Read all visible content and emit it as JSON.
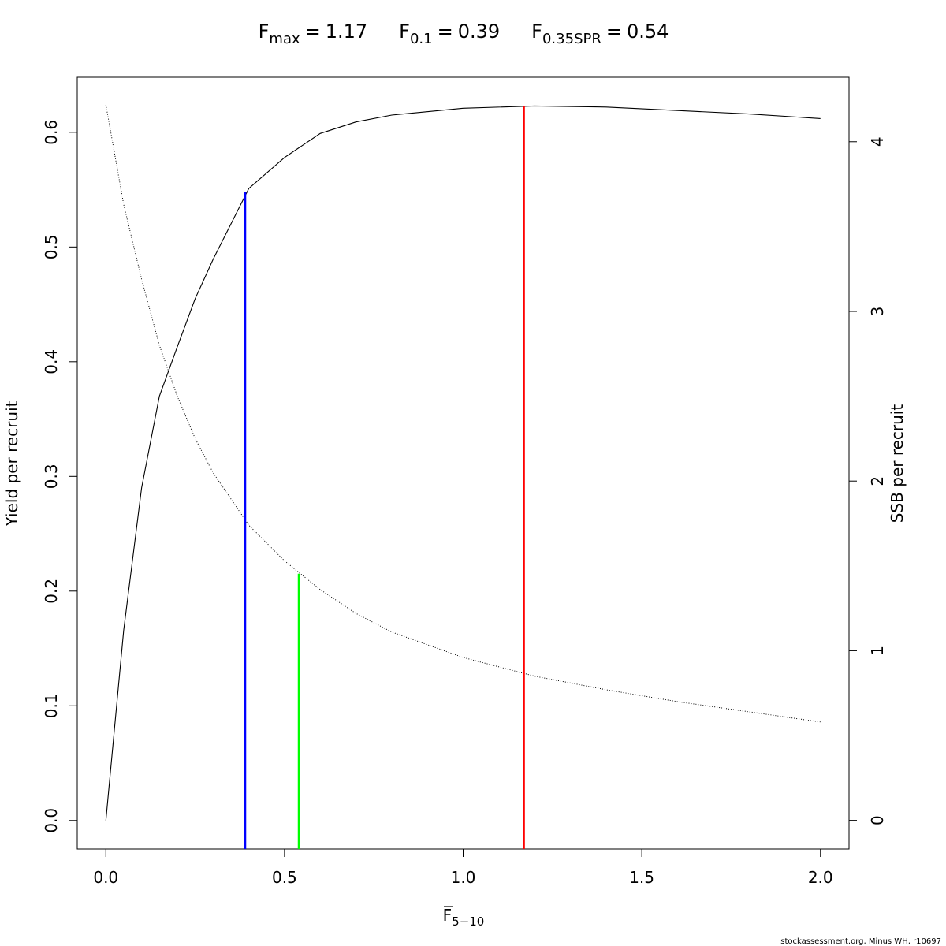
{
  "chart_data": {
    "type": "line",
    "reference_points": [
      {
        "symbol": "F",
        "subscript": "max",
        "relation": "=",
        "value": 1.17,
        "height": 0.623,
        "axis": "y",
        "color": "#ff0000"
      },
      {
        "symbol": "F",
        "subscript": "0.1",
        "relation": "=",
        "value": 0.39,
        "height": 0.548,
        "axis": "y",
        "color": "#0000ff"
      },
      {
        "symbol": "F",
        "subscript": "0.35SPR",
        "relation": "=",
        "value": 0.54,
        "height": 1.454,
        "axis": "y2",
        "color": "#00ff00"
      }
    ],
    "xlabel": {
      "symbol": "F",
      "subscript": "5−10"
    },
    "ylabel": "Yield per recruit",
    "y2label": "SSB per recruit",
    "x": [
      0,
      0.05,
      0.1,
      0.15,
      0.2,
      0.25,
      0.3,
      0.4,
      0.5,
      0.6,
      0.7,
      0.8,
      1.0,
      1.2,
      1.4,
      1.6,
      1.8,
      2.0
    ],
    "series": [
      {
        "color": "#000000",
        "dash": "solid",
        "axis": "y",
        "values": [
          0,
          0.166,
          0.29,
          0.37,
          0.413,
          0.455,
          0.489,
          0.551,
          0.578,
          0.599,
          0.609,
          0.615,
          0.621,
          0.623,
          0.622,
          0.619,
          0.616,
          0.612
        ]
      },
      {
        "color": "#000000",
        "dash": "dotted",
        "axis": "y2",
        "values": [
          4.218,
          3.63,
          3.19,
          2.8,
          2.5,
          2.25,
          2.05,
          1.74,
          1.53,
          1.36,
          1.22,
          1.11,
          0.96,
          0.85,
          0.77,
          0.7,
          0.64,
          0.58
        ]
      }
    ],
    "xlim": [
      -0.08,
      2.08
    ],
    "ylim": [
      -0.0249,
      0.648
    ],
    "y2lim": [
      -0.169,
      4.38
    ],
    "xticks": [
      {
        "value": 0,
        "label": "0.0"
      },
      {
        "value": 0.5,
        "label": "0.5"
      },
      {
        "value": 1,
        "label": "1.0"
      },
      {
        "value": 1.5,
        "label": "1.5"
      },
      {
        "value": 2,
        "label": "2.0"
      }
    ],
    "yticks": [
      {
        "value": 0,
        "label": "0.0"
      },
      0.1,
      0.2,
      0.3,
      0.4,
      0.5,
      0.6
    ],
    "y2ticks": [
      0,
      1,
      2,
      3,
      4
    ],
    "footer": "stockassessment.org, Minus WH, r10697"
  }
}
